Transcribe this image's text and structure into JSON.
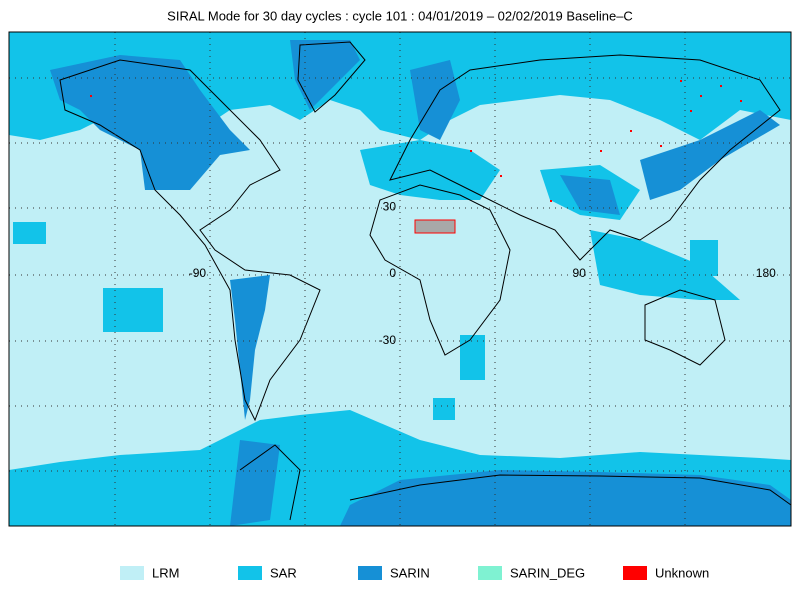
{
  "title": "SIRAL Mode for 30 day cycles : cycle 101 : 04/01/2019 – 02/02/2019 Baseline–C",
  "grid_labels": [
    {
      "text": "30",
      "lon": 0,
      "lat": 30
    },
    {
      "text": "-90",
      "lon": -90,
      "lat": 0
    },
    {
      "text": "0",
      "lon": 0,
      "lat": 0
    },
    {
      "text": "90",
      "lon": 90,
      "lat": 0
    },
    {
      "text": "180",
      "lon": 180,
      "lat": 0
    },
    {
      "text": "-30",
      "lon": 0,
      "lat": -30
    }
  ],
  "legend": [
    {
      "name": "LRM",
      "color": "#c0eff6"
    },
    {
      "name": "SAR",
      "color": "#12c3e9"
    },
    {
      "name": "SARIN",
      "color": "#1690d6"
    },
    {
      "name": "SARIN_DEG",
      "color": "#7ff2d2"
    },
    {
      "name": "Unknown",
      "color": "#ff0000"
    }
  ]
}
